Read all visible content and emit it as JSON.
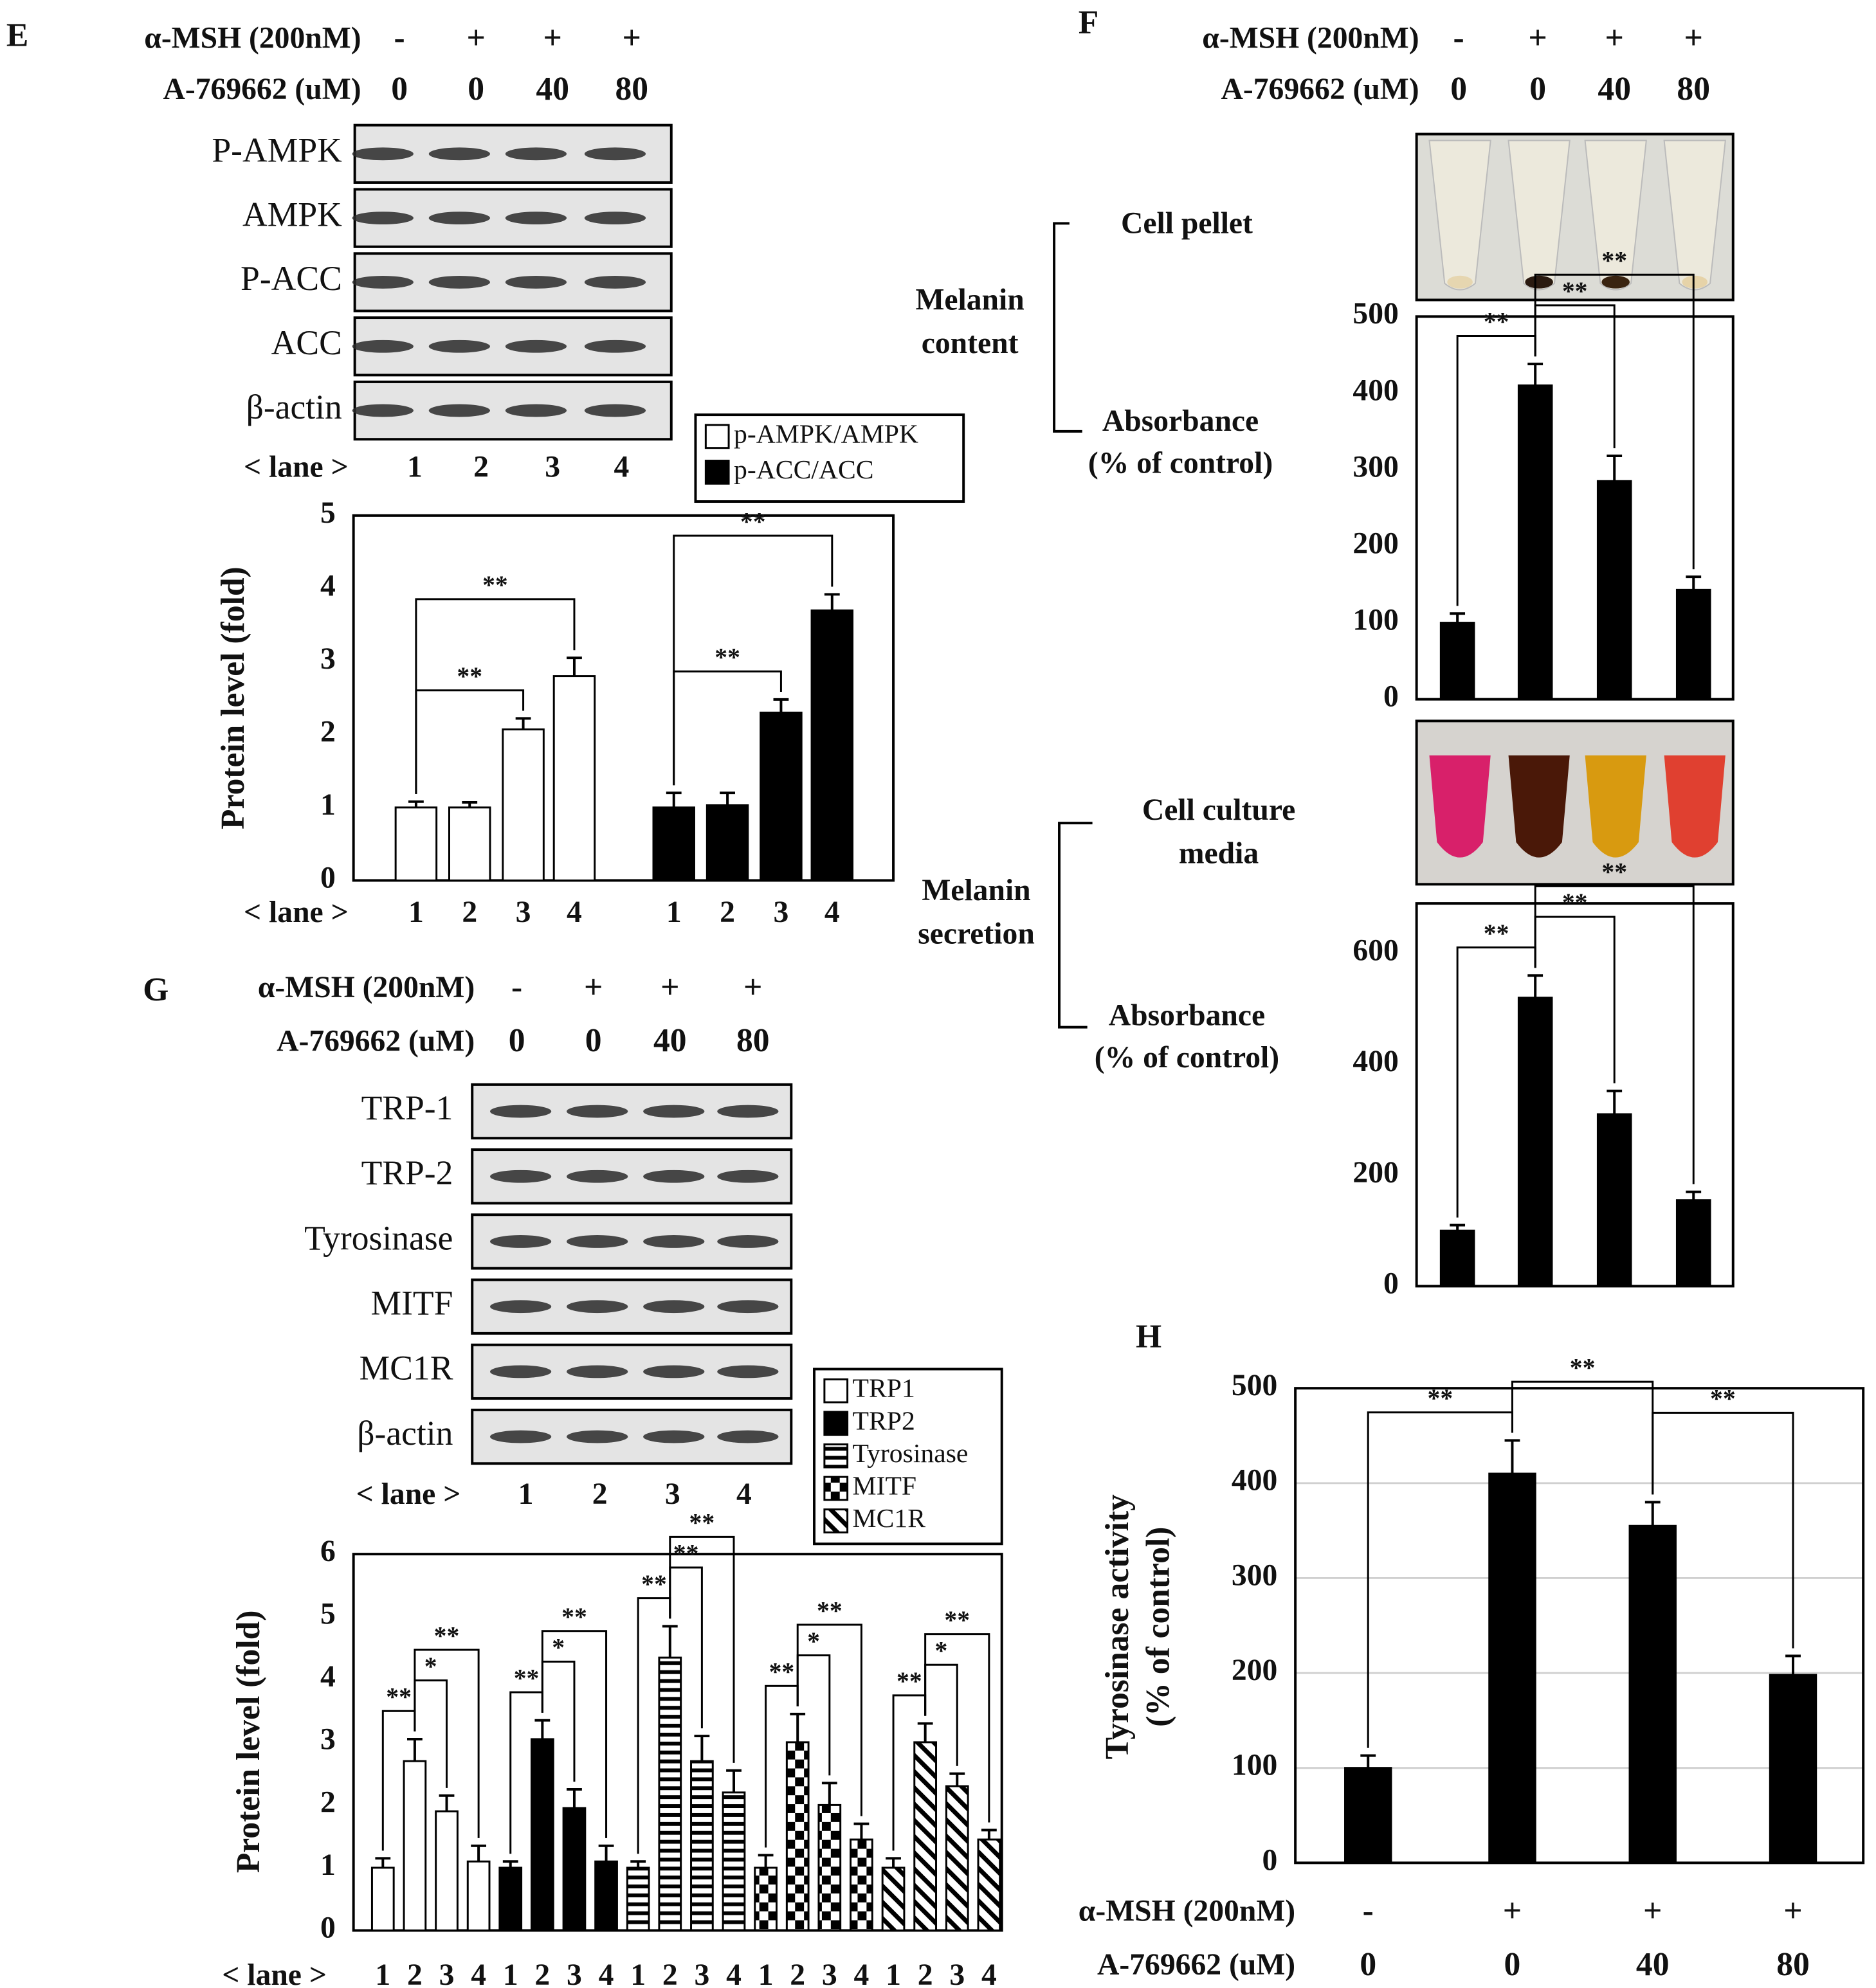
{
  "chart_data": [
    {
      "type": "bar",
      "panel": "E",
      "conditions": [
        {
          "label": "α-MSH (200nM)",
          "values": [
            "-",
            "+",
            "+",
            "+"
          ]
        },
        {
          "label": "A-769662 (uM)",
          "values": [
            "0",
            "0",
            "40",
            "80"
          ]
        }
      ],
      "blots": [
        "P-AMPK",
        "AMPK",
        "P-ACC",
        "ACC",
        "β-actin"
      ],
      "lane_label": "< lane >",
      "lanes": [
        "1",
        "2",
        "3",
        "4"
      ],
      "ylabel": "Protein level (fold)",
      "ylim": [
        0,
        5
      ],
      "yticks": [
        0,
        1,
        2,
        3,
        4,
        5
      ],
      "grid": false,
      "categories": [
        "1",
        "2",
        "3",
        "4"
      ],
      "series": [
        {
          "name": "p-AMPK/AMPK",
          "color": "#ffffff",
          "values": [
            1,
            1,
            2.07,
            2.8
          ],
          "errors": [
            0.08,
            0.07,
            0.15,
            0.25
          ]
        },
        {
          "name": "p-ACC/ACC",
          "color": "#000000",
          "values": [
            1,
            1.03,
            2.3,
            3.7
          ],
          "errors": [
            0.2,
            0.17,
            0.18,
            0.22
          ]
        }
      ],
      "significance": [
        {
          "label": "**",
          "series": 0,
          "from": 0,
          "to": 2
        },
        {
          "label": "**",
          "series": 0,
          "from": 0,
          "to": 3
        },
        {
          "label": "**",
          "series": 1,
          "from": 0,
          "to": 2
        },
        {
          "label": "**",
          "series": 1,
          "from": 0,
          "to": 3
        }
      ]
    },
    {
      "type": "bar",
      "panel": "F",
      "conditions": [
        {
          "label": "α-MSH (200nM)",
          "values": [
            "-",
            "+",
            "+",
            "+"
          ]
        },
        {
          "label": "A-769662 (uM)",
          "values": [
            "0",
            "0",
            "40",
            "80"
          ]
        }
      ],
      "photo_label": [
        "Cell pellet"
      ],
      "group_label": [
        "Melanin",
        "content"
      ],
      "ylabel": [
        "Absorbance",
        "(% of control)"
      ],
      "ylim": [
        0,
        500
      ],
      "yticks": [
        0,
        100,
        200,
        300,
        400,
        500
      ],
      "grid": false,
      "color": "#000000",
      "values": [
        100,
        410,
        285,
        143
      ],
      "errors": [
        12,
        28,
        33,
        17
      ],
      "significance": [
        {
          "label": "**",
          "from": 0,
          "to": 1
        },
        {
          "label": "**",
          "from": 1,
          "to": 2
        },
        {
          "label": "**",
          "from": 1,
          "to": 3
        }
      ]
    },
    {
      "type": "bar",
      "photo_label": [
        "Cell culture",
        "media"
      ],
      "group_label": [
        "Melanin",
        "secretion"
      ],
      "ylabel": [
        "Absorbance",
        "(% of control)"
      ],
      "ylim": [
        0,
        690
      ],
      "yticks": [
        0,
        200,
        400,
        600
      ],
      "grid": false,
      "color": "#000000",
      "values": [
        100,
        520,
        310,
        155
      ],
      "errors": [
        10,
        40,
        42,
        15
      ],
      "significance": [
        {
          "label": "**",
          "from": 0,
          "to": 1
        },
        {
          "label": "**",
          "from": 1,
          "to": 2
        },
        {
          "label": "**",
          "from": 1,
          "to": 3
        }
      ]
    },
    {
      "type": "bar",
      "panel": "G",
      "conditions": [
        {
          "label": "α-MSH (200nM)",
          "values": [
            "-",
            "+",
            "+",
            "+"
          ]
        },
        {
          "label": "A-769662 (uM)",
          "values": [
            "0",
            "0",
            "40",
            "80"
          ]
        }
      ],
      "blots": [
        "TRP-1",
        "TRP-2",
        "Tyrosinase",
        "MITF",
        "MC1R",
        "β-actin"
      ],
      "lane_label": "< lane >",
      "lanes": [
        "1",
        "2",
        "3",
        "4"
      ],
      "ylabel": "Protein level (fold)",
      "ylim": [
        0,
        6
      ],
      "yticks": [
        0,
        1,
        2,
        3,
        4,
        5,
        6
      ],
      "grid": false,
      "categories": [
        "1",
        "2",
        "3",
        "4"
      ],
      "series": [
        {
          "name": "TRP1",
          "color": "#ffffff",
          "values": [
            1,
            2.7,
            1.9,
            1.1
          ],
          "errors": [
            0.15,
            0.35,
            0.25,
            0.25
          ]
        },
        {
          "name": "TRP2",
          "color": "#000000",
          "values": [
            1,
            3.05,
            1.95,
            1.1
          ],
          "errors": [
            0.1,
            0.3,
            0.3,
            0.25
          ]
        },
        {
          "name": "Tyrosinase",
          "color": "#000000",
          "pattern": "horizontal-stripes",
          "values": [
            1,
            4.35,
            2.7,
            2.2
          ],
          "errors": [
            0.1,
            0.5,
            0.4,
            0.35
          ]
        },
        {
          "name": "MITF",
          "color": "#000000",
          "pattern": "checker",
          "values": [
            1,
            3.0,
            2.0,
            1.45
          ],
          "errors": [
            0.2,
            0.45,
            0.35,
            0.25
          ]
        },
        {
          "name": "MC1R",
          "color": "#000000",
          "pattern": "diagonal-stripes",
          "values": [
            1,
            3.0,
            2.3,
            1.45
          ],
          "errors": [
            0.15,
            0.3,
            0.2,
            0.15
          ]
        }
      ],
      "significance": [
        {
          "label": "**",
          "series": 0,
          "from": 0,
          "to": 1
        },
        {
          "label": "*",
          "series": 0,
          "from": 1,
          "to": 2
        },
        {
          "label": "**",
          "series": 0,
          "from": 1,
          "to": 3
        },
        {
          "label": "**",
          "series": 1,
          "from": 0,
          "to": 1
        },
        {
          "label": "*",
          "series": 1,
          "from": 1,
          "to": 2
        },
        {
          "label": "**",
          "series": 1,
          "from": 1,
          "to": 3
        },
        {
          "label": "**",
          "series": 2,
          "from": 0,
          "to": 1
        },
        {
          "label": "**",
          "series": 2,
          "from": 1,
          "to": 2
        },
        {
          "label": "**",
          "series": 2,
          "from": 1,
          "to": 3
        },
        {
          "label": "**",
          "series": 3,
          "from": 0,
          "to": 1
        },
        {
          "label": "*",
          "series": 3,
          "from": 1,
          "to": 2
        },
        {
          "label": "**",
          "series": 3,
          "from": 1,
          "to": 3
        },
        {
          "label": "**",
          "series": 4,
          "from": 0,
          "to": 1
        },
        {
          "label": "*",
          "series": 4,
          "from": 1,
          "to": 2
        },
        {
          "label": "**",
          "series": 4,
          "from": 1,
          "to": 3
        }
      ]
    },
    {
      "type": "bar",
      "panel": "H",
      "conditions": [
        {
          "label": "α-MSH (200nM)",
          "values": [
            "-",
            "+",
            "+",
            "+"
          ]
        },
        {
          "label": "A-769662 (uM)",
          "values": [
            "0",
            "0",
            "40",
            "80"
          ]
        }
      ],
      "ylabel": [
        "Tyrosinase activity",
        "(% of control)"
      ],
      "ylim": [
        0,
        500
      ],
      "yticks": [
        0,
        100,
        200,
        300,
        400,
        500
      ],
      "grid": true,
      "color": "#000000",
      "values": [
        100,
        410,
        355,
        198
      ],
      "errors": [
        13,
        35,
        25,
        20
      ],
      "significance": [
        {
          "label": "**",
          "from": 0,
          "to": 1
        },
        {
          "label": "**",
          "from": 1,
          "to": 2
        },
        {
          "label": "**",
          "from": 2,
          "to": 3
        }
      ]
    }
  ]
}
